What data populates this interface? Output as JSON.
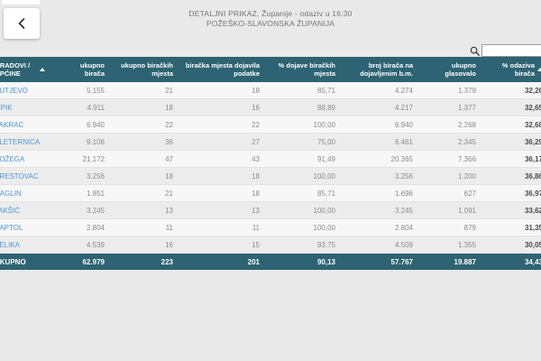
{
  "page": {
    "title_line1": "DETALJNI PRIKAZ, Županije - odaziv u 16:30",
    "title_line2": "POŽEŠKO-SLAVONSKA ŽUPANIJA"
  },
  "search": {
    "placeholder": "",
    "value": ""
  },
  "colors": {
    "header_bg": "#2d6372",
    "footer_bg": "#2d6372",
    "link_blue": "#4f97d6",
    "page_bg": "#e9e9e9"
  },
  "table": {
    "columns": [
      "GRADOVI / OPĆINE",
      "ukupno birača",
      "ukupno biračkih mjesta",
      "biračka mjesta dojavila podatke",
      "% dojave biračkih mjesta",
      "broj birača na dojavljenim b.m.",
      "ukupno glasovalo",
      "% odaziva birača"
    ],
    "rows": [
      {
        "name": "KUTJEVO",
        "values": [
          "5.155",
          "21",
          "18",
          "85,71",
          "4.274",
          "1.379",
          "32,26"
        ]
      },
      {
        "name": "LIPIK",
        "values": [
          "4.911",
          "18",
          "16",
          "88,89",
          "4.217",
          "1.377",
          "32,65"
        ]
      },
      {
        "name": "PAKRAC",
        "values": [
          "6.940",
          "22",
          "22",
          "100,00",
          "6.940",
          "2.268",
          "32,68"
        ]
      },
      {
        "name": "PLETERNICA",
        "values": [
          "9.106",
          "36",
          "27",
          "75,00",
          "6.461",
          "2.345",
          "36,29"
        ]
      },
      {
        "name": "POŽEGA",
        "values": [
          "21.172",
          "47",
          "43",
          "91,49",
          "20.365",
          "7.366",
          "36,17"
        ]
      },
      {
        "name": "BRESTOVAC",
        "values": [
          "3.256",
          "18",
          "18",
          "100,00",
          "3.256",
          "1.200",
          "36,86"
        ]
      },
      {
        "name": "ČAGLIN",
        "values": [
          "1.851",
          "21",
          "18",
          "85,71",
          "1.696",
          "627",
          "36,97"
        ]
      },
      {
        "name": "JAKŠIĆ",
        "values": [
          "3.245",
          "13",
          "13",
          "100,00",
          "3.245",
          "1.091",
          "33,62"
        ]
      },
      {
        "name": "KAPTOL",
        "values": [
          "2.804",
          "11",
          "11",
          "100,00",
          "2.804",
          "879",
          "31,35"
        ]
      },
      {
        "name": "VELIKA",
        "values": [
          "4.539",
          "16",
          "15",
          "93,75",
          "4.509",
          "1.355",
          "30,05"
        ]
      }
    ],
    "footer": {
      "name": "UKUPNO",
      "values": [
        "62.979",
        "223",
        "201",
        "90,13",
        "57.767",
        "19.887",
        "34,43"
      ]
    }
  }
}
